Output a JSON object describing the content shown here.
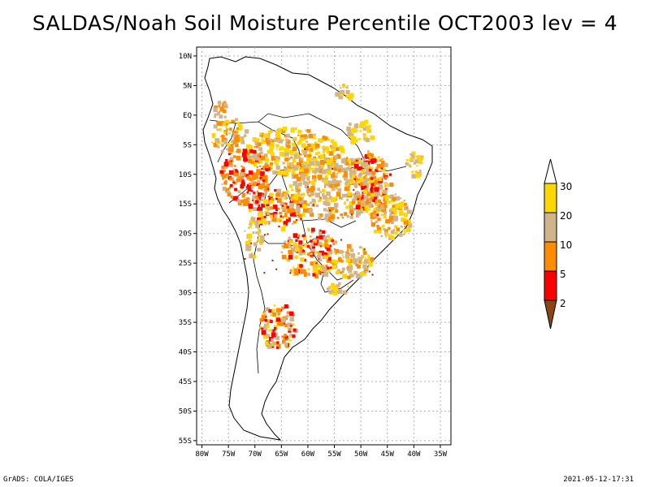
{
  "title": "SALDAS/Noah Soil Moisture Percentile OCT2003 lev = 4",
  "map": {
    "lat_labels": [
      "10N",
      "5N",
      "EQ",
      "5S",
      "10S",
      "15S",
      "20S",
      "25S",
      "30S",
      "35S",
      "40S",
      "45S",
      "50S",
      "55S"
    ],
    "lon_labels": [
      "80W",
      "75W",
      "70W",
      "65W",
      "60W",
      "55W",
      "50W",
      "45W",
      "40W",
      "35W"
    ],
    "colors": {
      "c2": "#ff0000",
      "c5": "#ff8c00",
      "c10": "#d2b48c",
      "c20": "#ffd700",
      "c_dark": "#8b2500",
      "land_line": "#000000",
      "grid": "#aaaaaa"
    }
  },
  "legend": {
    "labels": [
      "2",
      "5",
      "10",
      "20",
      "30"
    ],
    "colors": [
      "#8b4513",
      "#ff0000",
      "#ff8c00",
      "#d2b48c",
      "#ffd700",
      "#ffffff"
    ]
  },
  "footer": {
    "left": "GrADS: COLA/IGES",
    "right": "2021-05-12-17:31"
  }
}
